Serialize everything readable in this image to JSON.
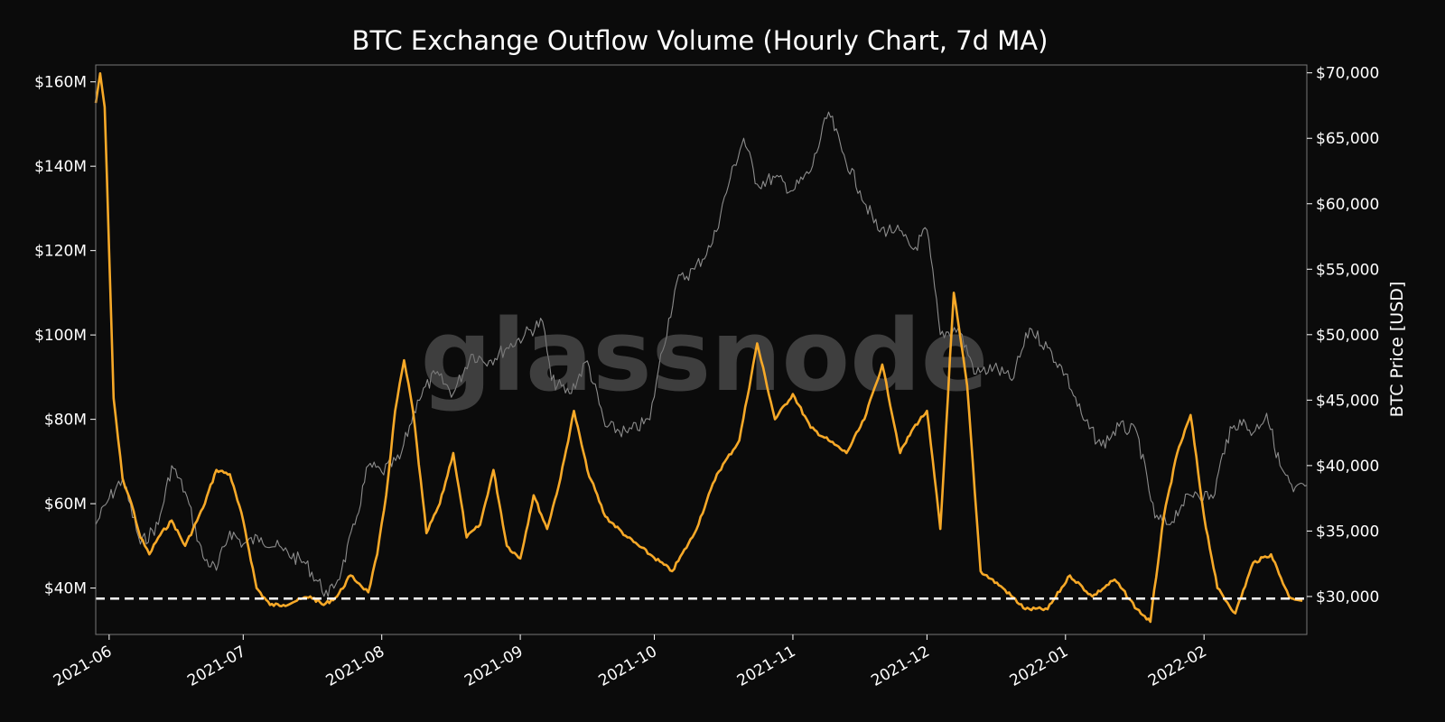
{
  "chart_data": {
    "type": "line",
    "title": "BTC Exchange Outflow Volume (Hourly Chart, 7d MA)",
    "watermark": "glassnode",
    "x_range": [
      "2021-05-29",
      "2022-02-24"
    ],
    "x_ticks": [
      "2021-06",
      "2021-07",
      "2021-08",
      "2021-09",
      "2021-10",
      "2021-11",
      "2021-12",
      "2022-01",
      "2022-02"
    ],
    "x_tick_dates": [
      "2021-06-01",
      "2021-07-01",
      "2021-08-01",
      "2021-09-01",
      "2021-10-01",
      "2021-11-01",
      "2021-12-01",
      "2022-01-01",
      "2022-02-01"
    ],
    "y_left": {
      "label": "",
      "lim": [
        29,
        164
      ],
      "ticks": [
        40,
        60,
        80,
        100,
        120,
        140,
        160
      ],
      "tick_labels": [
        "$40M",
        "$60M",
        "$80M",
        "$100M",
        "$120M",
        "$140M",
        "$160M"
      ]
    },
    "y_right": {
      "label": "BTC Price [USD]",
      "lim": [
        27100,
        70600
      ],
      "ticks": [
        30000,
        35000,
        40000,
        45000,
        50000,
        55000,
        60000,
        65000,
        70000
      ],
      "tick_labels": [
        "$30,000",
        "$35,000",
        "$40,000",
        "$45,000",
        "$50,000",
        "$55,000",
        "$60,000",
        "$65,000",
        "$70,000"
      ]
    },
    "reference_line": {
      "axis": "left",
      "value": 37.5,
      "style": "dashed",
      "color": "#ffffff"
    },
    "grid": false,
    "colors": {
      "background": "#0b0b0b",
      "outflow": "#f7a928",
      "price": "#8c8c8c",
      "frame": "#777777"
    },
    "series": [
      {
        "axis": "left",
        "color": "#f7a928",
        "x": [
          "2021-05-29",
          "2021-05-30",
          "2021-05-31",
          "2021-06-01",
          "2021-06-02",
          "2021-06-04",
          "2021-06-06",
          "2021-06-08",
          "2021-06-10",
          "2021-06-12",
          "2021-06-15",
          "2021-06-18",
          "2021-06-22",
          "2021-06-25",
          "2021-06-28",
          "2021-07-01",
          "2021-07-04",
          "2021-07-07",
          "2021-07-10",
          "2021-07-13",
          "2021-07-16",
          "2021-07-19",
          "2021-07-22",
          "2021-07-25",
          "2021-07-27",
          "2021-07-29",
          "2021-07-31",
          "2021-08-02",
          "2021-08-04",
          "2021-08-06",
          "2021-08-08",
          "2021-08-11",
          "2021-08-14",
          "2021-08-17",
          "2021-08-20",
          "2021-08-23",
          "2021-08-26",
          "2021-08-29",
          "2021-09-01",
          "2021-09-04",
          "2021-09-07",
          "2021-09-10",
          "2021-09-13",
          "2021-09-16",
          "2021-09-20",
          "2021-09-25",
          "2021-09-30",
          "2021-10-05",
          "2021-10-10",
          "2021-10-15",
          "2021-10-20",
          "2021-10-24",
          "2021-10-28",
          "2021-11-01",
          "2021-11-05",
          "2021-11-09",
          "2021-11-13",
          "2021-11-17",
          "2021-11-21",
          "2021-11-25",
          "2021-11-28",
          "2021-12-01",
          "2021-12-04",
          "2021-12-07",
          "2021-12-10",
          "2021-12-13",
          "2021-12-18",
          "2021-12-23",
          "2021-12-28",
          "2022-01-02",
          "2022-01-07",
          "2022-01-12",
          "2022-01-17",
          "2022-01-20",
          "2022-01-23",
          "2022-01-26",
          "2022-01-29",
          "2022-02-01",
          "2022-02-04",
          "2022-02-08",
          "2022-02-12",
          "2022-02-16",
          "2022-02-20",
          "2022-02-23"
        ],
        "values": [
          155,
          162,
          154,
          120,
          85,
          66,
          60,
          52,
          48,
          52,
          56,
          50,
          59,
          68,
          67,
          56,
          40,
          36,
          36,
          37,
          38,
          36,
          38,
          43,
          41,
          39,
          48,
          62,
          82,
          94,
          82,
          53,
          60,
          72,
          52,
          55,
          68,
          50,
          47,
          62,
          54,
          66,
          82,
          68,
          57,
          52,
          48,
          44,
          53,
          67,
          75,
          98,
          80,
          86,
          78,
          75,
          72,
          80,
          93,
          72,
          78,
          82,
          54,
          110,
          88,
          44,
          40,
          35,
          35,
          43,
          38,
          42,
          35,
          32,
          57,
          72,
          81,
          57,
          40,
          34,
          46,
          48,
          38,
          37
        ]
      },
      {
        "axis": "right",
        "color": "#8c8c8c",
        "x": [
          "2021-05-29",
          "2021-06-01",
          "2021-06-04",
          "2021-06-08",
          "2021-06-12",
          "2021-06-15",
          "2021-06-18",
          "2021-06-22",
          "2021-06-25",
          "2021-06-28",
          "2021-07-01",
          "2021-07-05",
          "2021-07-10",
          "2021-07-15",
          "2021-07-20",
          "2021-07-23",
          "2021-07-26",
          "2021-07-29",
          "2021-08-01",
          "2021-08-05",
          "2021-08-09",
          "2021-08-13",
          "2021-08-17",
          "2021-08-21",
          "2021-08-25",
          "2021-08-29",
          "2021-09-02",
          "2021-09-06",
          "2021-09-08",
          "2021-09-12",
          "2021-09-16",
          "2021-09-20",
          "2021-09-25",
          "2021-09-30",
          "2021-10-02",
          "2021-10-06",
          "2021-10-10",
          "2021-10-14",
          "2021-10-18",
          "2021-10-21",
          "2021-10-24",
          "2021-10-28",
          "2021-11-01",
          "2021-11-05",
          "2021-11-09",
          "2021-11-12",
          "2021-11-16",
          "2021-11-20",
          "2021-11-24",
          "2021-11-28",
          "2021-12-01",
          "2021-12-04",
          "2021-12-08",
          "2021-12-12",
          "2021-12-16",
          "2021-12-20",
          "2021-12-24",
          "2021-12-28",
          "2022-01-01",
          "2022-01-05",
          "2022-01-09",
          "2022-01-13",
          "2022-01-17",
          "2022-01-21",
          "2022-01-24",
          "2022-01-27",
          "2022-01-30",
          "2022-02-03",
          "2022-02-06",
          "2022-02-09",
          "2022-02-12",
          "2022-02-15",
          "2022-02-18",
          "2022-02-21",
          "2022-02-24"
        ],
        "values": [
          35500,
          37500,
          39000,
          34000,
          35500,
          40000,
          38000,
          33000,
          32000,
          35000,
          34000,
          34500,
          33500,
          32500,
          30000,
          32000,
          35500,
          40000,
          39500,
          40500,
          45000,
          47000,
          45500,
          48500,
          48000,
          49000,
          50000,
          51000,
          46500,
          45500,
          48000,
          43000,
          42500,
          43500,
          47500,
          54000,
          55000,
          57000,
          62000,
          65000,
          61500,
          62000,
          61000,
          62500,
          67000,
          64000,
          61000,
          58000,
          58000,
          56500,
          58000,
          50000,
          50500,
          47000,
          47500,
          46500,
          50500,
          49000,
          47000,
          43500,
          41500,
          43000,
          42500,
          36000,
          35500,
          37000,
          38000,
          37500,
          42000,
          43500,
          42500,
          44000,
          40000,
          38000,
          38500
        ]
      }
    ]
  }
}
